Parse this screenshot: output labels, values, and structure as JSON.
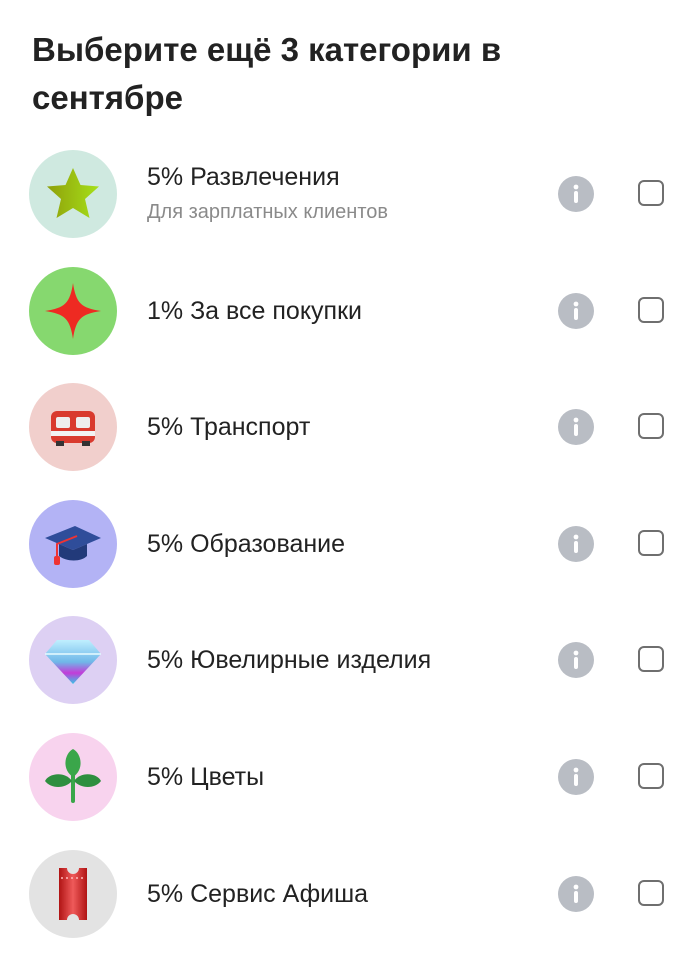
{
  "title": "Выберите ещё 3 категории в сентябре",
  "categories": [
    {
      "label": "5% Развлечения",
      "subtitle": "Для зарплатных клиентов",
      "icon": "star-icon",
      "bg": "#cfe9e0",
      "checked": false
    },
    {
      "label": "1% За все покупки",
      "icon": "sparkle-icon",
      "bg": "#86d86f",
      "checked": false
    },
    {
      "label": "5% Транспорт",
      "icon": "tram-icon",
      "bg": "#f1cfcc",
      "checked": false
    },
    {
      "label": "5% Образование",
      "icon": "graduation-cap-icon",
      "bg": "#b3b3f5",
      "checked": false
    },
    {
      "label": "5% Ювелирные изделия",
      "icon": "diamond-icon",
      "bg": "#ddd0f3",
      "checked": false
    },
    {
      "label": "5% Цветы",
      "icon": "plant-icon",
      "bg": "#f8d3ee",
      "checked": false
    },
    {
      "label": "5% Сервис Афиша",
      "icon": "ticket-icon",
      "bg": "#e3e3e3",
      "checked": false
    }
  ]
}
